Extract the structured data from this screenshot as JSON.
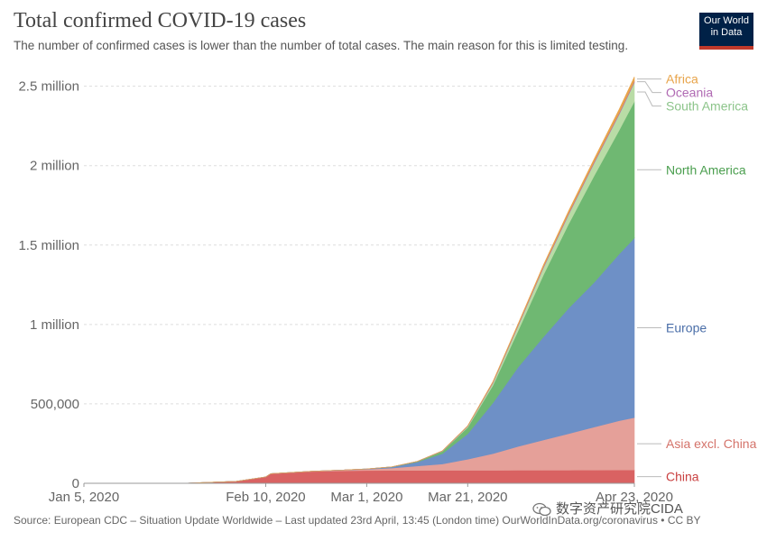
{
  "header": {
    "title": "Total confirmed COVID-19 cases",
    "subtitle": "The number of confirmed cases is lower than the number of total cases. The main reason for this is limited testing."
  },
  "logo": {
    "line1": "Our World",
    "line2": "in Data"
  },
  "footer": {
    "source": "Source: European CDC – Situation Update Worldwide – Last updated 23rd April, 13:45 (London time) OurWorldInData.org/coronavirus • CC BY"
  },
  "watermark": {
    "text": "数字资产研究院CIDA",
    "icon": "wechat-icon"
  },
  "chart_data": {
    "type": "area",
    "stacked": true,
    "title": "Total confirmed COVID-19 cases",
    "x_tick_labels": [
      "Jan 5, 2020",
      "Feb 10, 2020",
      "Mar 1, 2020",
      "Mar 21, 2020",
      "Apr 23, 2020"
    ],
    "x_days": [
      0,
      10,
      20,
      30,
      36,
      37,
      45,
      50,
      56,
      61,
      66,
      71,
      76,
      81,
      86,
      91,
      96,
      101,
      106,
      109
    ],
    "x_tick_days": [
      0,
      36,
      56,
      76,
      109
    ],
    "ylim": [
      0,
      2600000
    ],
    "y_ticks": [
      0,
      500000,
      1000000,
      1500000,
      2000000,
      2500000
    ],
    "y_tick_labels": [
      "0",
      "500,000",
      "1 million",
      "1.5 million",
      "2 million",
      "2.5 million"
    ],
    "series": [
      {
        "name": "China",
        "label": "China",
        "color": "#d96262",
        "values": [
          0,
          0,
          500,
          12000,
          40000,
          60000,
          74000,
          78000,
          80500,
          81000,
          81200,
          81500,
          81800,
          82000,
          82300,
          82700,
          83000,
          83500,
          83800,
          84000
        ]
      },
      {
        "name": "Asia excl. China",
        "label": "Asia excl. China",
        "color": "#e5a099",
        "values": [
          0,
          0,
          0,
          100,
          500,
          800,
          1500,
          4000,
          8000,
          15000,
          28000,
          40000,
          70000,
          105000,
          150000,
          190000,
          230000,
          270000,
          310000,
          330000
        ]
      },
      {
        "name": "Europe",
        "label": "Europe",
        "color": "#6e90c6",
        "values": [
          0,
          0,
          0,
          0,
          0,
          0,
          10,
          100,
          1500,
          7000,
          25000,
          65000,
          160000,
          320000,
          500000,
          650000,
          790000,
          910000,
          1050000,
          1130000
        ]
      },
      {
        "name": "North America",
        "label": "North America",
        "color": "#6fb872",
        "values": [
          0,
          0,
          0,
          0,
          0,
          0,
          15,
          80,
          200,
          800,
          3000,
          15000,
          40000,
          110000,
          230000,
          390000,
          530000,
          670000,
          780000,
          860000
        ]
      },
      {
        "name": "South America",
        "label": "South America",
        "color": "#b9dca6",
        "values": [
          0,
          0,
          0,
          0,
          0,
          0,
          0,
          0,
          5,
          50,
          300,
          1500,
          6000,
          15000,
          30000,
          45000,
          60000,
          80000,
          100000,
          120000
        ]
      },
      {
        "name": "Oceania",
        "label": "Oceania",
        "color": "#b06ab3",
        "values": [
          0,
          0,
          0,
          0,
          5,
          8,
          10,
          15,
          30,
          100,
          300,
          1200,
          2800,
          4500,
          6500,
          7600,
          8000,
          8200,
          8300,
          8400
        ]
      },
      {
        "name": "Africa",
        "label": "Africa",
        "color": "#e8a44a",
        "values": [
          0,
          0,
          0,
          0,
          0,
          0,
          0,
          1,
          3,
          20,
          100,
          600,
          1800,
          4500,
          7500,
          11000,
          15000,
          18000,
          23000,
          26000
        ]
      }
    ],
    "legend_position": "right"
  }
}
